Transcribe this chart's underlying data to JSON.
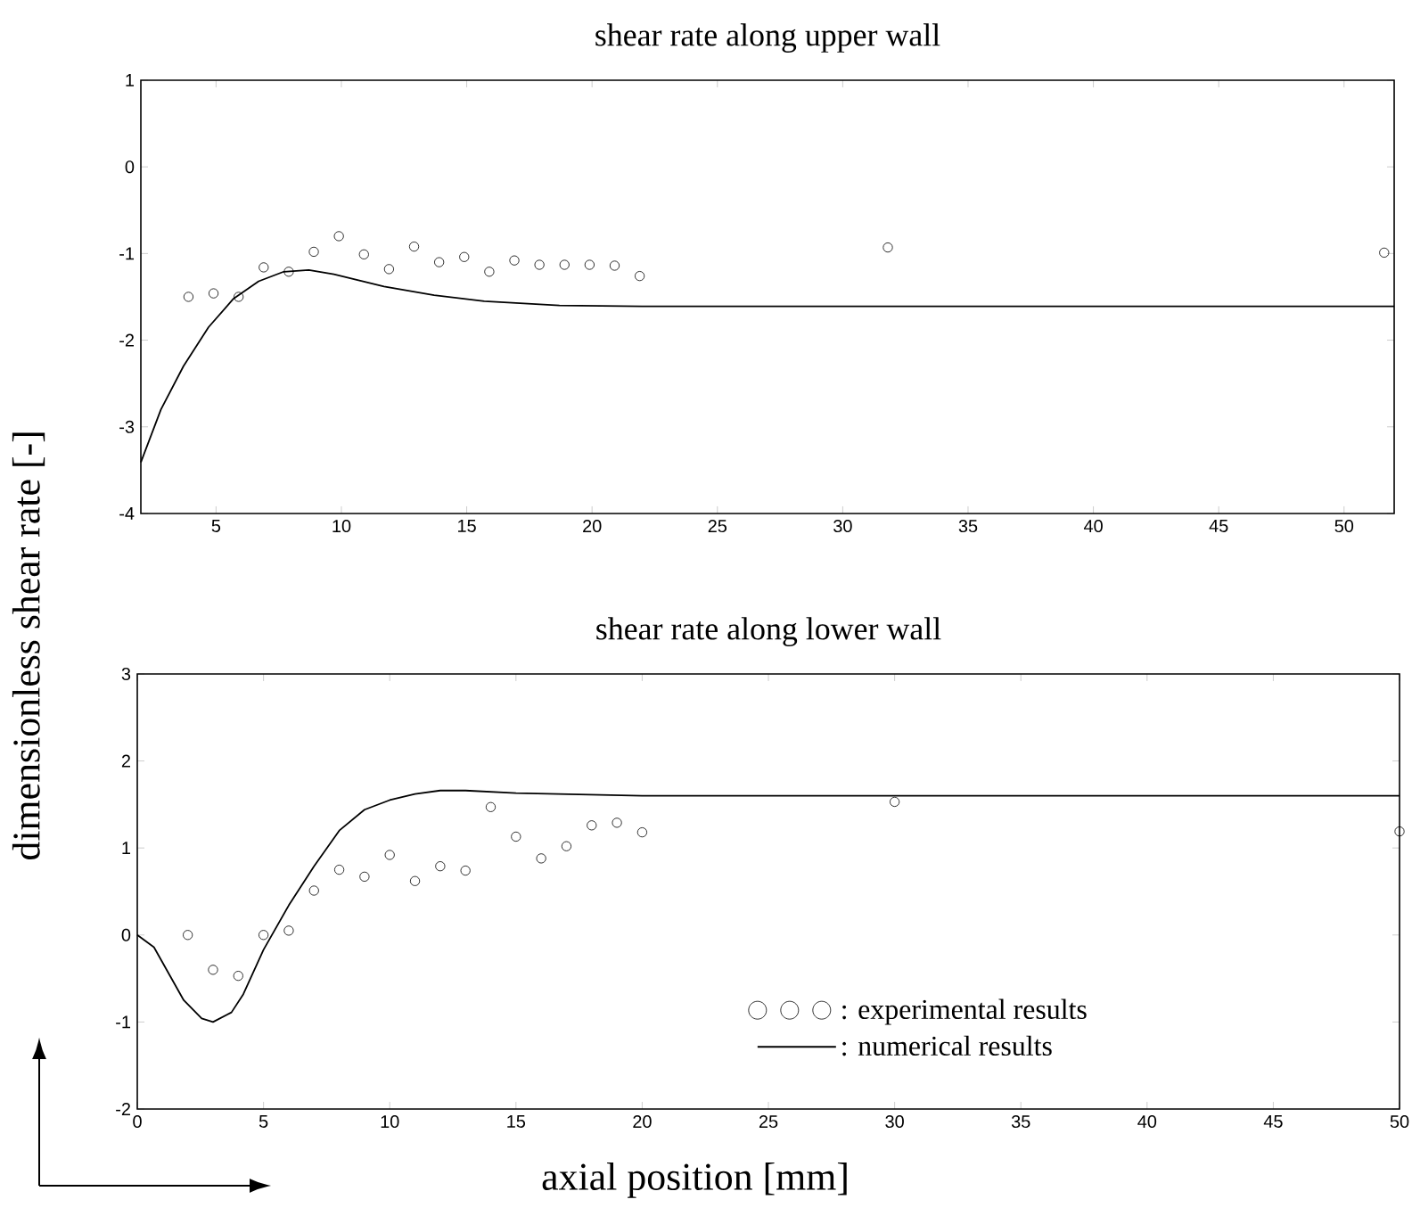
{
  "chart_data": [
    {
      "type": "line",
      "title": "shear rate along upper wall",
      "xlim": [
        2,
        52
      ],
      "xticks": [
        5,
        10,
        15,
        20,
        25,
        30,
        35,
        40,
        45,
        50
      ],
      "ylim": [
        -4,
        1
      ],
      "yticks": [
        -4,
        -3,
        -2,
        -1,
        0,
        1
      ],
      "grid": false,
      "legend": false,
      "series": [
        {
          "type": "scatter",
          "marker": "circle",
          "color": "#000000",
          "x": [
            3.9,
            4.9,
            5.9,
            6.9,
            7.9,
            8.9,
            9.9,
            10.9,
            11.9,
            12.9,
            13.9,
            14.9,
            15.9,
            16.9,
            17.9,
            18.9,
            19.9,
            20.9,
            21.9,
            31.8,
            51.6
          ],
          "values": [
            -1.5,
            -1.46,
            -1.5,
            -1.16,
            -1.21,
            -0.98,
            -0.8,
            -1.01,
            -1.18,
            -0.92,
            -1.1,
            -1.04,
            -1.21,
            -1.08,
            -1.13,
            -1.13,
            -1.13,
            -1.14,
            -1.26,
            -0.93,
            -0.99
          ]
        },
        {
          "line_style": "solid",
          "color": "#000000",
          "x": [
            2,
            2.8,
            3.7,
            4.7,
            5.7,
            6.7,
            7.7,
            8.7,
            9.7,
            11.7,
            13.7,
            15.7,
            18.7,
            22,
            52
          ],
          "values": [
            -3.41,
            -2.8,
            -2.3,
            -1.85,
            -1.52,
            -1.32,
            -1.21,
            -1.19,
            -1.24,
            -1.38,
            -1.48,
            -1.55,
            -1.6,
            -1.61,
            -1.61
          ]
        }
      ]
    },
    {
      "type": "line",
      "title": "shear rate along lower wall",
      "xlabel": "axial position [mm]",
      "ylabel": "dimensionless shear rate [-]",
      "xlim": [
        0,
        50
      ],
      "xticks": [
        0,
        5,
        10,
        15,
        20,
        25,
        30,
        35,
        40,
        45,
        50
      ],
      "ylim": [
        -2,
        3
      ],
      "yticks": [
        -2,
        -1,
        0,
        1,
        2,
        3
      ],
      "grid": false,
      "legend": "bottom right",
      "series": [
        {
          "type": "scatter",
          "name": ": experimental results",
          "marker": "circle",
          "color": "#000000",
          "x": [
            2,
            3,
            4,
            5,
            6,
            7,
            8,
            9,
            10,
            11,
            12,
            13,
            14,
            15,
            16,
            17,
            18,
            19,
            20,
            30,
            50
          ],
          "values": [
            0.0,
            -0.4,
            -0.47,
            0.0,
            0.05,
            0.51,
            0.75,
            0.67,
            0.92,
            0.62,
            0.79,
            0.74,
            1.47,
            1.13,
            0.88,
            1.02,
            1.26,
            1.29,
            1.18,
            1.53,
            1.19
          ]
        },
        {
          "name": ": numerical results",
          "line_style": "solid",
          "color": "#000000",
          "x": [
            0,
            0.66,
            1.84,
            2.55,
            3,
            3.73,
            4.2,
            5,
            6,
            7,
            8,
            9,
            10,
            11,
            12,
            13,
            15,
            20,
            50
          ],
          "values": [
            0,
            -0.14,
            -0.75,
            -0.96,
            -1,
            -0.89,
            -0.68,
            -0.17,
            0.34,
            0.79,
            1.2,
            1.44,
            1.55,
            1.62,
            1.66,
            1.66,
            1.63,
            1.6,
            1.6
          ]
        }
      ]
    }
  ]
}
